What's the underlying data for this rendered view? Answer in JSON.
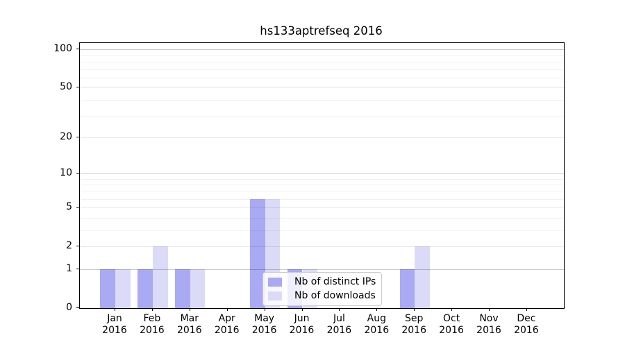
{
  "chart_data": {
    "type": "bar",
    "title": "hs133aptrefseq 2016",
    "categories": [
      "Jan",
      "Feb",
      "Mar",
      "Apr",
      "May",
      "Jun",
      "Jul",
      "Aug",
      "Sep",
      "Oct",
      "Nov",
      "Dec"
    ],
    "x_year": "2016",
    "series": [
      {
        "name": "Nb of distinct IPs",
        "color": "#a9a9f4",
        "values": [
          1,
          1,
          1,
          0,
          6,
          1,
          0,
          0,
          1,
          0,
          0,
          0
        ]
      },
      {
        "name": "Nb of downloads",
        "color": "#dbdbf8",
        "values": [
          1,
          2,
          1,
          0,
          6,
          1,
          0,
          0,
          2,
          0,
          0,
          0
        ]
      }
    ],
    "y_scale": "log(1+x)",
    "ylim": [
      0,
      112
    ],
    "y_major_ticks": [
      0,
      1,
      2,
      5,
      10,
      20,
      50,
      100
    ],
    "y_minor_gridlines": [
      3,
      4,
      6,
      7,
      8,
      9,
      30,
      40,
      60,
      70,
      80,
      90
    ],
    "grid": "horizontal",
    "legend_position": "lower center"
  }
}
